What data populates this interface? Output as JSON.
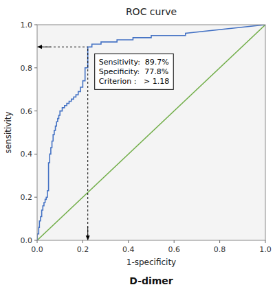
{
  "chart_data": {
    "type": "line",
    "title": "ROC curve",
    "xlabel": "1-specificity",
    "ylabel": "sensitivity",
    "caption": "D-dimer",
    "xlim": [
      0.0,
      1.0
    ],
    "ylim": [
      0.0,
      1.0
    ],
    "xticks": [
      {
        "value": 0.0,
        "label": "0.0"
      },
      0.2,
      0.4,
      0.6,
      0.8,
      {
        "value": 1.0,
        "label": "1.0"
      }
    ],
    "yticks": [
      {
        "value": 0.0,
        "label": "0.0"
      },
      0.2,
      0.4,
      0.6,
      0.8,
      {
        "value": 1.0,
        "label": "1.0"
      }
    ],
    "grid": false,
    "series": [
      {
        "color": "#4472C4",
        "x": [
          0.0,
          0.0,
          0.007,
          0.007,
          0.01,
          0.01,
          0.015,
          0.015,
          0.02,
          0.02,
          0.025,
          0.025,
          0.03,
          0.03,
          0.035,
          0.035,
          0.04,
          0.04,
          0.045,
          0.045,
          0.05,
          0.05,
          0.055,
          0.055,
          0.06,
          0.06,
          0.065,
          0.065,
          0.07,
          0.07,
          0.075,
          0.075,
          0.08,
          0.08,
          0.085,
          0.085,
          0.09,
          0.09,
          0.095,
          0.095,
          0.1,
          0.1,
          0.11,
          0.11,
          0.12,
          0.12,
          0.13,
          0.13,
          0.14,
          0.14,
          0.15,
          0.15,
          0.16,
          0.16,
          0.17,
          0.17,
          0.18,
          0.18,
          0.19,
          0.19,
          0.2,
          0.2,
          0.21,
          0.21,
          0.222,
          0.222,
          0.24,
          0.24,
          0.28,
          0.28,
          0.35,
          0.35,
          0.42,
          0.42,
          0.5,
          0.5,
          0.65,
          0.65,
          1.0
        ],
        "values": [
          0.0,
          0.03,
          0.03,
          0.06,
          0.06,
          0.09,
          0.09,
          0.11,
          0.11,
          0.14,
          0.14,
          0.16,
          0.16,
          0.175,
          0.175,
          0.19,
          0.19,
          0.2,
          0.2,
          0.23,
          0.23,
          0.36,
          0.36,
          0.4,
          0.4,
          0.43,
          0.43,
          0.46,
          0.46,
          0.49,
          0.49,
          0.51,
          0.51,
          0.53,
          0.53,
          0.55,
          0.55,
          0.565,
          0.565,
          0.58,
          0.58,
          0.6,
          0.6,
          0.615,
          0.615,
          0.625,
          0.625,
          0.635,
          0.635,
          0.645,
          0.645,
          0.655,
          0.655,
          0.665,
          0.665,
          0.675,
          0.675,
          0.69,
          0.69,
          0.71,
          0.71,
          0.74,
          0.74,
          0.8,
          0.8,
          0.897,
          0.897,
          0.91,
          0.91,
          0.92,
          0.92,
          0.93,
          0.93,
          0.94,
          0.94,
          0.95,
          0.95,
          0.96,
          1.0
        ]
      },
      {
        "color": "#70AD47",
        "x": [
          0,
          1
        ],
        "values": [
          0,
          1
        ]
      }
    ],
    "annotations": [
      {
        "x": 0.222,
        "y": 0.897,
        "lines": [
          "Sensitivity:  89.7%",
          "Specificity:  77.8%",
          "Criterion :   > 1.18"
        ]
      }
    ]
  }
}
